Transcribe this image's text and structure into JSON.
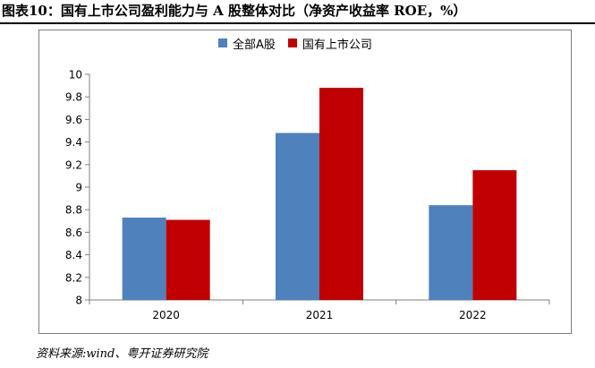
{
  "title": "图表10：国有上市公司盈利能力与 A 股整体对比（净资产收益率 ROE，%）",
  "source": "资料来源:wind、粤开证券研究院",
  "colors": {
    "series_a": "#4f81bd",
    "series_b": "#c00000",
    "axis": "#7f7f7f"
  },
  "chart_data": {
    "type": "bar",
    "categories": [
      "2020",
      "2021",
      "2022"
    ],
    "series": [
      {
        "name": "全部A股",
        "values": [
          8.73,
          9.48,
          8.84
        ]
      },
      {
        "name": "国有上市公司",
        "values": [
          8.71,
          9.88,
          9.15
        ]
      }
    ],
    "ylim": [
      8,
      10
    ],
    "yticks": [
      "8",
      "8.2",
      "8.4",
      "8.6",
      "8.8",
      "9",
      "9.2",
      "9.4",
      "9.6",
      "9.8",
      "10"
    ],
    "grid": false,
    "legend": "top-center"
  }
}
